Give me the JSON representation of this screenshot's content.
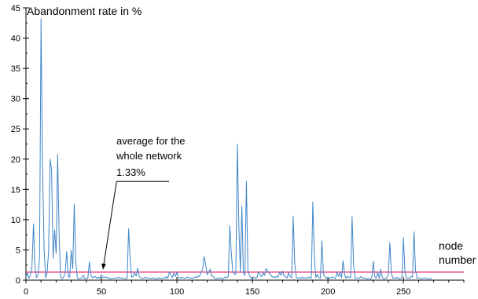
{
  "chart_data": {
    "type": "line",
    "title": "Abandonment rate in %",
    "xlabel": "node number",
    "xlabel_lines": [
      "node",
      "number"
    ],
    "xlim": [
      0,
      290
    ],
    "ylim": [
      0,
      45
    ],
    "x_ticks": [
      0,
      50,
      100,
      150,
      200,
      250
    ],
    "y_ticks": [
      0,
      5,
      10,
      15,
      20,
      25,
      30,
      35,
      40,
      45
    ],
    "grid": false,
    "series": [
      {
        "color": "#3f86c8",
        "points": [
          [
            0,
            0.5
          ],
          [
            1,
            1.2
          ],
          [
            2,
            0.3
          ],
          [
            3,
            0.8
          ],
          [
            4,
            2.3
          ],
          [
            5,
            9.3
          ],
          [
            6,
            2.1
          ],
          [
            7,
            0.4
          ],
          [
            8,
            0.9
          ],
          [
            9,
            3.6
          ],
          [
            10,
            43.2
          ],
          [
            11,
            18.7
          ],
          [
            12,
            5.4
          ],
          [
            13,
            0.4
          ],
          [
            14,
            1.2
          ],
          [
            15,
            4.8
          ],
          [
            16,
            20
          ],
          [
            17,
            18.2
          ],
          [
            18,
            3.6
          ],
          [
            19,
            8.3
          ],
          [
            20,
            4.4
          ],
          [
            21,
            20.8
          ],
          [
            22,
            7.1
          ],
          [
            23,
            0.5
          ],
          [
            24,
            0.3
          ],
          [
            25,
            0.5
          ],
          [
            26,
            1.2
          ],
          [
            27,
            4.7
          ],
          [
            28,
            0.6
          ],
          [
            29,
            0.5
          ],
          [
            30,
            4.9
          ],
          [
            31,
            1.9
          ],
          [
            32,
            12.6
          ],
          [
            33,
            3
          ],
          [
            34,
            0.4
          ],
          [
            35,
            0.2
          ],
          [
            36,
            0.3
          ],
          [
            37,
            0.4
          ],
          [
            38,
            0.8
          ],
          [
            39,
            0.2
          ],
          [
            40,
            0.3
          ],
          [
            41,
            0.3
          ],
          [
            42,
            3
          ],
          [
            43,
            0.9
          ],
          [
            44,
            0.4
          ],
          [
            45,
            0.5
          ],
          [
            46,
            0.6
          ],
          [
            47,
            0.3
          ],
          [
            48,
            0.5
          ],
          [
            49,
            0.3
          ],
          [
            50,
            0.9
          ],
          [
            51,
            0.5
          ],
          [
            52,
            0.4
          ],
          [
            53,
            0.6
          ],
          [
            54,
            0.3
          ],
          [
            55,
            0.4
          ],
          [
            56,
            0.2
          ],
          [
            57,
            0.3
          ],
          [
            58,
            0.3
          ],
          [
            59,
            0.4
          ],
          [
            60,
            0.3
          ],
          [
            61,
            0.5
          ],
          [
            62,
            0.3
          ],
          [
            63,
            0.4
          ],
          [
            64,
            0.3
          ],
          [
            65,
            0.3
          ],
          [
            66,
            0.2
          ],
          [
            67,
            0.3
          ],
          [
            68,
            8.5
          ],
          [
            69,
            3.5
          ],
          [
            70,
            0.5
          ],
          [
            71,
            0.6
          ],
          [
            72,
            1.2
          ],
          [
            73,
            0.7
          ],
          [
            74,
            2
          ],
          [
            75,
            0.6
          ],
          [
            76,
            0.4
          ],
          [
            77,
            0.3
          ],
          [
            78,
            0.3
          ],
          [
            79,
            0.5
          ],
          [
            80,
            0.3
          ],
          [
            81,
            0.4
          ],
          [
            82,
            0.3
          ],
          [
            83,
            0.3
          ],
          [
            84,
            0.4
          ],
          [
            85,
            0.3
          ],
          [
            86,
            0.3
          ],
          [
            87,
            0.2
          ],
          [
            88,
            0.4
          ],
          [
            89,
            0.3
          ],
          [
            90,
            0.3
          ],
          [
            91,
            0.4
          ],
          [
            92,
            0.3
          ],
          [
            93,
            0.6
          ],
          [
            94,
            0.3
          ],
          [
            95,
            1.4
          ],
          [
            96,
            0.9
          ],
          [
            97,
            0.4
          ],
          [
            98,
            1.2
          ],
          [
            99,
            0.6
          ],
          [
            100,
            1.3
          ],
          [
            101,
            0.4
          ],
          [
            102,
            0.3
          ],
          [
            103,
            0.5
          ],
          [
            104,
            0.4
          ],
          [
            105,
            0.3
          ],
          [
            106,
            0.4
          ],
          [
            107,
            0.5
          ],
          [
            108,
            0.3
          ],
          [
            109,
            0.4
          ],
          [
            110,
            0.3
          ],
          [
            111,
            0.4
          ],
          [
            112,
            0.5
          ],
          [
            113,
            0.4
          ],
          [
            114,
            0.7
          ],
          [
            115,
            0.6
          ],
          [
            116,
            1.4
          ],
          [
            117,
            1.7
          ],
          [
            118,
            3.9
          ],
          [
            119,
            2.6
          ],
          [
            120,
            0.9
          ],
          [
            121,
            1.3
          ],
          [
            122,
            1.8
          ],
          [
            123,
            0.7
          ],
          [
            124,
            0.6
          ],
          [
            125,
            0.3
          ],
          [
            126,
            0.2
          ],
          [
            127,
            0.3
          ],
          [
            128,
            0.3
          ],
          [
            129,
            0.4
          ],
          [
            130,
            0.2
          ],
          [
            131,
            0.3
          ],
          [
            132,
            0.5
          ],
          [
            133,
            0.4
          ],
          [
            134,
            0.6
          ],
          [
            135,
            9
          ],
          [
            136,
            4.5
          ],
          [
            137,
            1.4
          ],
          [
            138,
            1
          ],
          [
            139,
            1
          ],
          [
            140,
            22.5
          ],
          [
            141,
            9
          ],
          [
            142,
            1.5
          ],
          [
            143,
            12.2
          ],
          [
            144,
            1.2
          ],
          [
            145,
            0.8
          ],
          [
            146,
            16.3
          ],
          [
            147,
            1.5
          ],
          [
            148,
            0.8
          ],
          [
            149,
            0.4
          ],
          [
            150,
            0.3
          ],
          [
            151,
            0.5
          ],
          [
            152,
            0.3
          ],
          [
            153,
            0.4
          ],
          [
            154,
            1.4
          ],
          [
            155,
            0.9
          ],
          [
            156,
            0.6
          ],
          [
            157,
            1.2
          ],
          [
            158,
            0.8
          ],
          [
            159,
            1.9
          ],
          [
            160,
            1.6
          ],
          [
            161,
            1.2
          ],
          [
            162,
            0.9
          ],
          [
            163,
            0.5
          ],
          [
            164,
            0.6
          ],
          [
            165,
            0.4
          ],
          [
            166,
            0.7
          ],
          [
            167,
            0.5
          ],
          [
            168,
            1.3
          ],
          [
            169,
            0.8
          ],
          [
            170,
            1.5
          ],
          [
            171,
            0.7
          ],
          [
            172,
            0.5
          ],
          [
            173,
            0.4
          ],
          [
            174,
            1.2
          ],
          [
            175,
            0.6
          ],
          [
            176,
            0.4
          ],
          [
            177,
            10.6
          ],
          [
            178,
            2.8
          ],
          [
            179,
            0.5
          ],
          [
            180,
            0.3
          ],
          [
            181,
            0.4
          ],
          [
            182,
            0.3
          ],
          [
            183,
            0.5
          ],
          [
            184,
            0.3
          ],
          [
            185,
            0.4
          ],
          [
            186,
            0.3
          ],
          [
            187,
            0.5
          ],
          [
            188,
            0.4
          ],
          [
            189,
            0.3
          ],
          [
            190,
            12.9
          ],
          [
            191,
            3.6
          ],
          [
            192,
            0.4
          ],
          [
            193,
            1
          ],
          [
            194,
            0.4
          ],
          [
            195,
            0.3
          ],
          [
            196,
            6.5
          ],
          [
            197,
            1
          ],
          [
            198,
            0.6
          ],
          [
            199,
            0.3
          ],
          [
            200,
            0.5
          ],
          [
            201,
            0.3
          ],
          [
            202,
            0.4
          ],
          [
            203,
            0.5
          ],
          [
            204,
            0.4
          ],
          [
            205,
            0.3
          ],
          [
            206,
            1.3
          ],
          [
            207,
            0.6
          ],
          [
            208,
            1.2
          ],
          [
            209,
            0.4
          ],
          [
            210,
            3.2
          ],
          [
            211,
            1
          ],
          [
            212,
            0.3
          ],
          [
            213,
            0.6
          ],
          [
            214,
            0.5
          ],
          [
            215,
            0.4
          ],
          [
            216,
            10.5
          ],
          [
            217,
            2.5
          ],
          [
            218,
            0.3
          ],
          [
            219,
            0.4
          ],
          [
            220,
            0.3
          ],
          [
            221,
            0.4
          ],
          [
            222,
            0.6
          ],
          [
            223,
            0.3
          ],
          [
            224,
            0.4
          ],
          [
            225,
            0.3
          ],
          [
            226,
            0.2
          ],
          [
            227,
            0.3
          ],
          [
            228,
            0.2
          ],
          [
            229,
            0.4
          ],
          [
            230,
            3.1
          ],
          [
            231,
            0.6
          ],
          [
            232,
            0.3
          ],
          [
            233,
            1.3
          ],
          [
            234,
            0.3
          ],
          [
            235,
            1.8
          ],
          [
            236,
            0.4
          ],
          [
            237,
            0.2
          ],
          [
            238,
            0.3
          ],
          [
            239,
            0.4
          ],
          [
            240,
            0.9
          ],
          [
            241,
            6.2
          ],
          [
            242,
            1.2
          ],
          [
            243,
            0.3
          ],
          [
            244,
            0.4
          ],
          [
            245,
            0.3
          ],
          [
            246,
            0.5
          ],
          [
            247,
            0.2
          ],
          [
            248,
            0.3
          ],
          [
            249,
            0.4
          ],
          [
            250,
            7
          ],
          [
            251,
            1.4
          ],
          [
            252,
            0.3
          ],
          [
            253,
            0.4
          ],
          [
            254,
            0.3
          ],
          [
            255,
            0.6
          ],
          [
            256,
            0.5
          ],
          [
            257,
            8
          ],
          [
            258,
            1.6
          ],
          [
            259,
            0.3
          ],
          [
            260,
            0.4
          ],
          [
            261,
            0.3
          ],
          [
            262,
            0.2
          ],
          [
            263,
            0.3
          ],
          [
            264,
            0.4
          ],
          [
            265,
            0.3
          ],
          [
            266,
            0.2
          ],
          [
            267,
            0.3
          ],
          [
            268,
            0.2
          ],
          [
            269,
            0.3
          ]
        ]
      }
    ],
    "reference_line": {
      "value": 1.33,
      "color": "#e01464",
      "x_range": [
        0,
        290
      ]
    },
    "annotation": {
      "lines": [
        "average for the",
        "whole network",
        "1.33%"
      ],
      "arrow_tail": [
        60,
        16.3
      ],
      "arrow_head": [
        51,
        1.8
      ]
    }
  }
}
